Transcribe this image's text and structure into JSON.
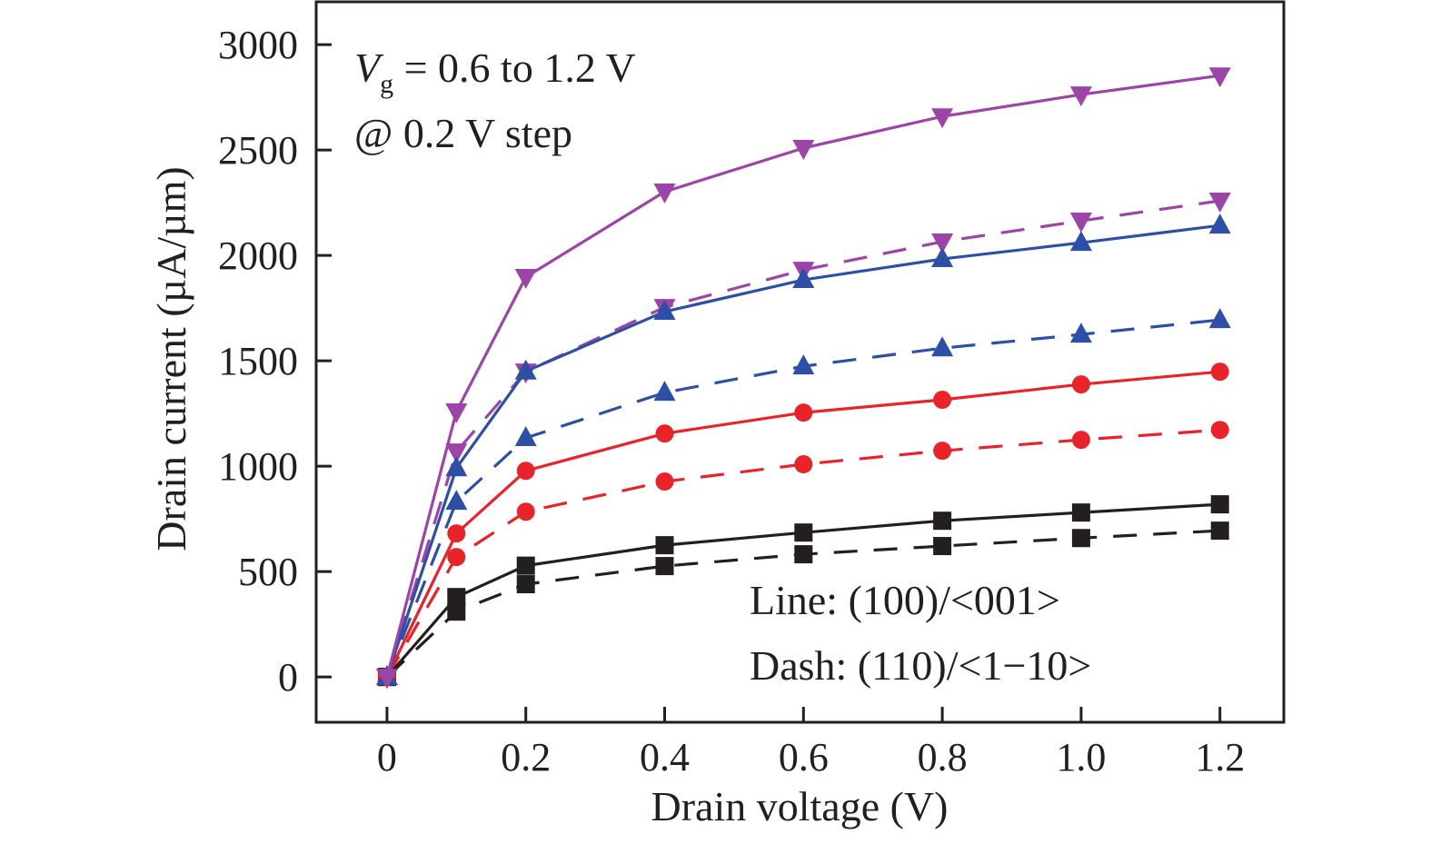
{
  "chart_data": {
    "type": "line",
    "title": "",
    "xlabel": "Drain voltage (V)",
    "ylabel": "Drain current (µA/µm)",
    "xlim": [
      -0.102,
      1.292
    ],
    "ylim": [
      -215,
      3203
    ],
    "grid": false,
    "x_ticks": [
      0,
      0.2,
      0.4,
      0.6,
      0.8,
      1.0,
      1.2
    ],
    "x_tick_labels": [
      "0",
      "0.2",
      "0.4",
      "0.6",
      "0.8",
      "1.0",
      "1.2"
    ],
    "y_ticks": [
      0,
      500,
      1000,
      1500,
      2000,
      2500,
      3000
    ],
    "y_tick_labels": [
      "0",
      "500",
      "1000",
      "1500",
      "2000",
      "2500",
      "3000"
    ],
    "x": [
      0,
      0.1,
      0.2,
      0.4,
      0.6,
      0.8,
      1.0,
      1.2
    ],
    "annotations": {
      "vg_symbol": "V",
      "vg_subscript": "g",
      "vg_text": " = 0.6 to 1.2 V",
      "step_text": "@ 0.2 V step",
      "legend_line": "Line: (100)/<001>",
      "legend_dash": "Dash: (110)/<1−10>"
    },
    "legend_position": "bottom-right",
    "series": [
      {
        "name": "Vg=0.6 V (100)/<001>",
        "vg": 0.6,
        "orientation": "(100)/<001>",
        "style": "solid",
        "marker": "square",
        "color": "#231f20",
        "values": [
          0,
          379,
          528,
          625,
          685,
          741,
          780,
          819
        ]
      },
      {
        "name": "Vg=0.6 V (110)/<1-10>",
        "vg": 0.6,
        "orientation": "(110)/<1-10>",
        "style": "dash",
        "marker": "square",
        "color": "#231f20",
        "values": [
          0,
          310,
          440,
          526,
          582,
          621,
          659,
          694
        ]
      },
      {
        "name": "Vg=0.8 V (100)/<001>",
        "vg": 0.8,
        "orientation": "(100)/<001>",
        "style": "solid",
        "marker": "circle",
        "color": "#e8232a",
        "values": [
          0,
          681,
          978,
          1155,
          1254,
          1315,
          1388,
          1448
        ]
      },
      {
        "name": "Vg=0.8 V (110)/<1-10>",
        "vg": 0.8,
        "orientation": "(110)/<1-10>",
        "style": "dash",
        "marker": "circle",
        "color": "#e8232a",
        "values": [
          0,
          569,
          784,
          927,
          1009,
          1073,
          1125,
          1172
        ]
      },
      {
        "name": "Vg=1.0 V (100)/<001>",
        "vg": 1.0,
        "orientation": "(100)/<001>",
        "style": "solid",
        "marker": "triangle-up",
        "color": "#2e4fa6",
        "values": [
          0,
          991,
          1450,
          1733,
          1884,
          1983,
          2060,
          2142
        ]
      },
      {
        "name": "Vg=1.0 V (110)/<1-10>",
        "vg": 1.0,
        "orientation": "(110)/<1-10>",
        "style": "dash",
        "marker": "triangle-up",
        "color": "#2e4fa6",
        "values": [
          0,
          832,
          1134,
          1349,
          1474,
          1560,
          1625,
          1694
        ]
      },
      {
        "name": "Vg=1.2 V (100)/<001>",
        "vg": 1.2,
        "orientation": "(100)/<001>",
        "style": "solid",
        "marker": "triangle-down",
        "color": "#9c44a8",
        "values": [
          0,
          1259,
          1897,
          2302,
          2509,
          2659,
          2763,
          2853
        ]
      },
      {
        "name": "Vg=1.2 V (110)/<1-10>",
        "vg": 1.2,
        "orientation": "(110)/<1-10>",
        "style": "dash",
        "marker": "triangle-down",
        "color": "#9c44a8",
        "values": [
          0,
          1069,
          1448,
          1754,
          1931,
          2065,
          2164,
          2259
        ]
      }
    ]
  }
}
